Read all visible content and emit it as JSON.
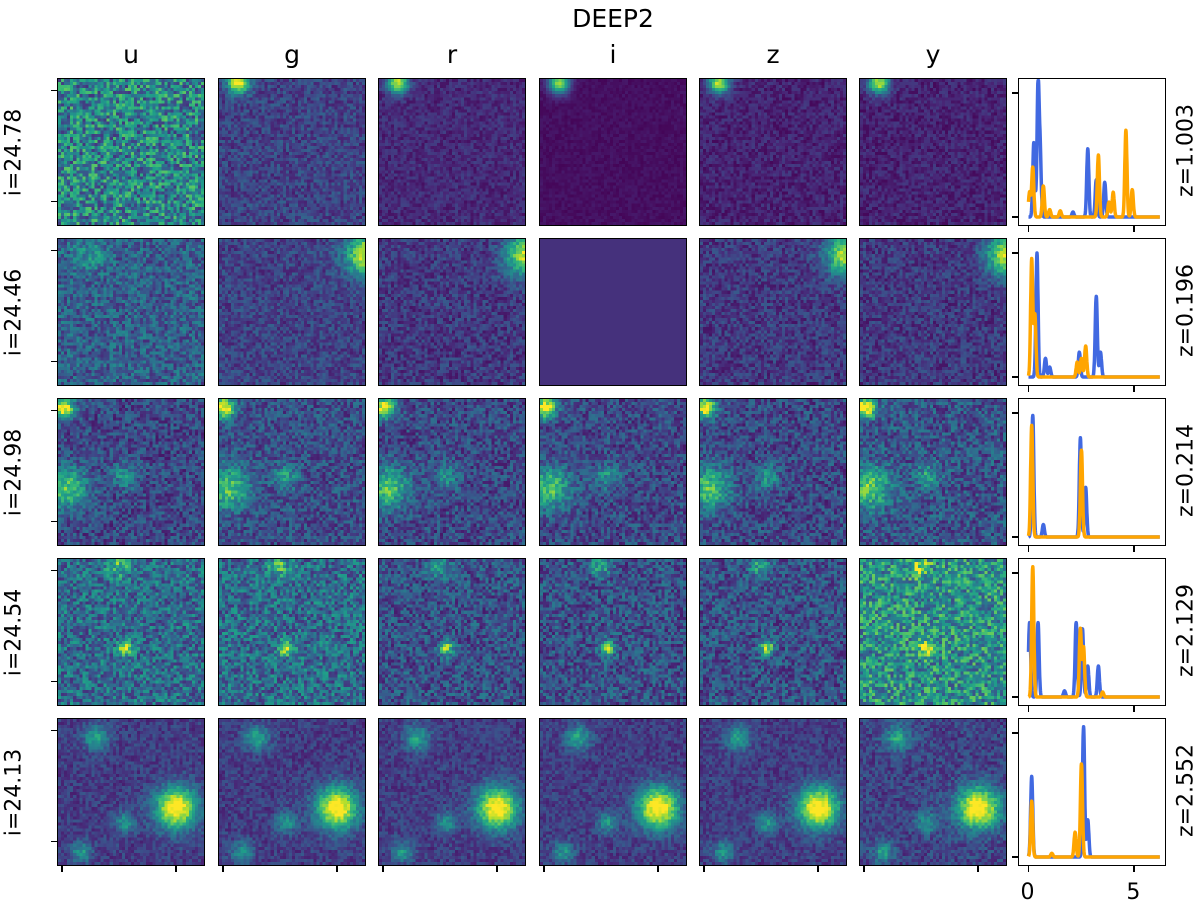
{
  "figure": {
    "title": "DEEP2",
    "bands": [
      "u",
      "g",
      "r",
      "i",
      "z",
      "y"
    ],
    "rows": [
      {
        "i_label": "i=24.78",
        "z_label": "z=1.003"
      },
      {
        "i_label": "i=24.46",
        "z_label": "z=0.196"
      },
      {
        "i_label": "i=24.98",
        "z_label": "z=0.214"
      },
      {
        "i_label": "i=24.54",
        "z_label": "z=2.129"
      },
      {
        "i_label": "i=24.13",
        "z_label": "z=2.552"
      }
    ]
  },
  "colors": {
    "blue": "#4169e1",
    "orange": "#ffa500"
  },
  "chart_data": [
    {
      "type": "line",
      "title": "z=1.003",
      "xlim": [
        -0.45,
        6.4
      ],
      "xticks": [
        0,
        5
      ],
      "series": [
        {
          "name": "blue",
          "color": "#4169e1",
          "peaks": [
            [
              0.45,
              1.05
            ],
            [
              0.25,
              0.6
            ],
            [
              0.55,
              0.5
            ],
            [
              2.8,
              0.55
            ],
            [
              3.2,
              0.3
            ],
            [
              3.6,
              0.28
            ],
            [
              2.1,
              0.04
            ]
          ]
        },
        {
          "name": "orange",
          "color": "#ffa500",
          "peaks": [
            [
              0.05,
              0.2
            ],
            [
              0.2,
              0.4
            ],
            [
              0.7,
              0.25
            ],
            [
              1.0,
              0.06
            ],
            [
              1.5,
              0.05
            ],
            [
              3.3,
              0.5
            ],
            [
              3.8,
              0.12
            ],
            [
              4.0,
              0.2
            ],
            [
              4.6,
              0.7
            ],
            [
              4.9,
              0.22
            ]
          ]
        }
      ]
    },
    {
      "type": "line",
      "title": "z=0.196",
      "xlim": [
        -0.45,
        6.4
      ],
      "xticks": [
        0,
        5
      ],
      "series": [
        {
          "name": "blue",
          "color": "#4169e1",
          "peaks": [
            [
              0.4,
              1.0
            ],
            [
              0.8,
              0.15
            ],
            [
              1.0,
              0.08
            ],
            [
              2.4,
              0.2
            ],
            [
              3.2,
              0.65
            ],
            [
              3.4,
              0.2
            ]
          ]
        },
        {
          "name": "orange",
          "color": "#ffa500",
          "peaks": [
            [
              0.15,
              0.95
            ],
            [
              0.3,
              0.5
            ],
            [
              2.3,
              0.12
            ],
            [
              2.5,
              0.15
            ],
            [
              2.7,
              0.25
            ]
          ]
        }
      ]
    },
    {
      "type": "line",
      "title": "z=0.214",
      "xlim": [
        -0.45,
        6.4
      ],
      "xticks": [
        0,
        5
      ],
      "series": [
        {
          "name": "blue",
          "color": "#4169e1",
          "peaks": [
            [
              0.2,
              0.98
            ],
            [
              0.7,
              0.1
            ],
            [
              2.45,
              0.8
            ],
            [
              2.7,
              0.4
            ]
          ]
        },
        {
          "name": "orange",
          "color": "#ffa500",
          "peaks": [
            [
              0.15,
              0.9
            ],
            [
              2.5,
              0.7
            ]
          ]
        }
      ]
    },
    {
      "type": "line",
      "title": "z=2.129",
      "xlim": [
        -0.45,
        6.4
      ],
      "xticks": [
        0,
        5
      ],
      "series": [
        {
          "name": "blue",
          "color": "#4169e1",
          "peaks": [
            [
              0.05,
              0.6
            ],
            [
              0.45,
              0.6
            ],
            [
              1.7,
              0.05
            ],
            [
              2.25,
              0.6
            ],
            [
              2.55,
              0.55
            ],
            [
              2.8,
              0.25
            ],
            [
              3.3,
              0.25
            ]
          ]
        },
        {
          "name": "orange",
          "color": "#ffa500",
          "peaks": [
            [
              0.2,
              1.05
            ],
            [
              2.45,
              0.55
            ],
            [
              2.6,
              0.4
            ],
            [
              3.5,
              0.04
            ]
          ]
        }
      ]
    },
    {
      "type": "line",
      "title": "z=2.552",
      "xlim": [
        -0.45,
        6.4
      ],
      "xticks": [
        0,
        5
      ],
      "series": [
        {
          "name": "blue",
          "color": "#4169e1",
          "peaks": [
            [
              0.15,
              0.65
            ],
            [
              2.6,
              1.05
            ],
            [
              2.8,
              0.3
            ]
          ]
        },
        {
          "name": "orange",
          "color": "#ffa500",
          "peaks": [
            [
              0.15,
              0.45
            ],
            [
              1.1,
              0.03
            ],
            [
              2.2,
              0.2
            ],
            [
              2.5,
              0.75
            ]
          ]
        }
      ]
    }
  ]
}
